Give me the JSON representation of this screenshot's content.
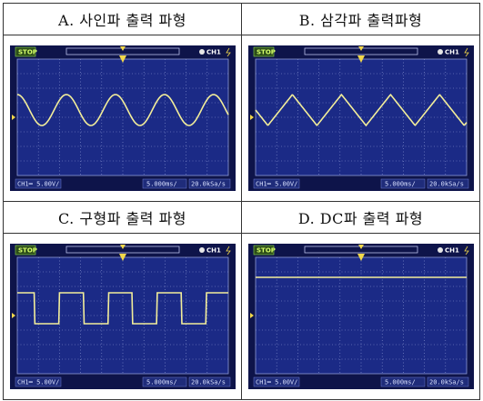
{
  "panels": [
    {
      "caption": "A. 사인파 출력 파형",
      "waveform": "sine",
      "stop_label": "STOP",
      "channel_label": "CH1",
      "volts_div": "CH1═ 5.00V/",
      "time_div": "5.000ms/",
      "sample_rate": "20.0kSa/s"
    },
    {
      "caption": "B. 삼각파 출력파형",
      "waveform": "triangle",
      "stop_label": "STOP",
      "channel_label": "CH1",
      "volts_div": "CH1═ 5.00V/",
      "time_div": "5.000ms/",
      "sample_rate": "20.0kSa/s"
    },
    {
      "caption": "C. 구형파 출력 파형",
      "waveform": "square",
      "stop_label": "STOP",
      "channel_label": "CH1",
      "volts_div": "CH1═ 5.00V/",
      "time_div": "5.000ms/",
      "sample_rate": "20.0kSa/s"
    },
    {
      "caption": "D. DC파 출력 파형",
      "waveform": "dc",
      "stop_label": "STOP",
      "channel_label": "CH1",
      "volts_div": "CH1═ 5.00V/",
      "time_div": "5.000ms/",
      "sample_rate": "20.0kSa/s"
    }
  ],
  "colors": {
    "screen": "#1b2a86",
    "trace": "#f3ee9a",
    "grid": "#8f9bd6",
    "bezel": "#0e144a",
    "status": "#6e7fd0"
  }
}
